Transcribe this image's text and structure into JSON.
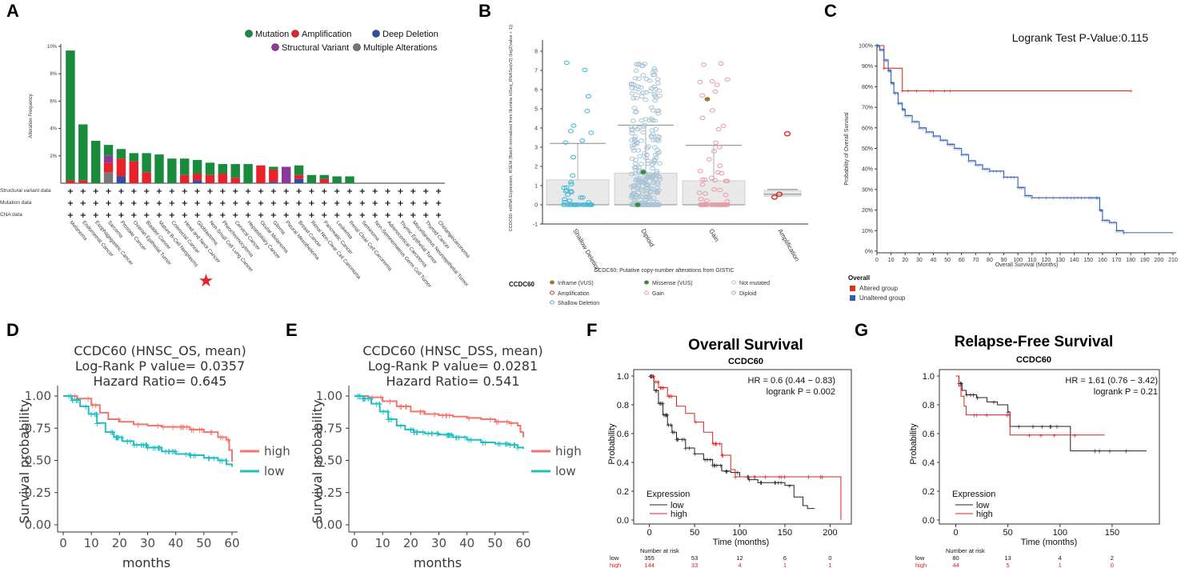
{
  "panel_labels": [
    "A",
    "B",
    "C",
    "D",
    "E",
    "F",
    "G"
  ],
  "chart_data": [
    {
      "id": "A",
      "type": "bar",
      "ylabel": "Alteration Frequency",
      "yticks": [
        "10%",
        "8%",
        "6%",
        "4%",
        "2%"
      ],
      "ylim": [
        0,
        10
      ],
      "legend": [
        {
          "name": "Mutation",
          "color": "#1a8a3c"
        },
        {
          "name": "Amplification",
          "color": "#e8222a"
        },
        {
          "name": "Deep Deletion",
          "color": "#2c4fa3"
        },
        {
          "name": "Structural Variant",
          "color": "#8b3a9b"
        },
        {
          "name": "Multiple Alterations",
          "color": "#777777"
        }
      ],
      "row_labels": [
        "Structural variant data",
        "Mutation data",
        "CNA data"
      ],
      "categories": [
        "Melanoma",
        "Endometrial Cancer",
        "Esophagogastric Cancer",
        "Sarcoma",
        "Prostate Cancer",
        "Ovarian Epithelial Tumor",
        "Bladder Cancer",
        "Mature B-Cell Neoplasms",
        "Colorectal Cancer",
        "Head and Neck Cancer",
        "Glioblastoma",
        "Non-Small Cell Lung Cancer",
        "Pheochromocytoma",
        "Cervical Cancer",
        "Hepatobiliary Cancer",
        "Ocular Melanoma",
        "Glioma",
        "Pleural Mesothelioma",
        "Breast Cancer",
        "Renal Non-Clear Cell Carcinoma",
        "Pancreatic Cancer",
        "Leukemia",
        "Renal Clear Cell Carcinoma",
        "Seminoma",
        "Non-Seminomatous Germ Cell Tumor",
        "Adrenocortical Carcinoma",
        "Thymic Epithelial Tumor",
        "Miscellaneous Neuroepithelial Tumor",
        "Thyroid Cancer",
        "Cholangiocarcinoma"
      ],
      "series": [
        {
          "name": "Multiple Alterations",
          "values": [
            0,
            0,
            0,
            0.8,
            0,
            0,
            0,
            0,
            0,
            0,
            0,
            0,
            0,
            0,
            0,
            0,
            0,
            0,
            0,
            0,
            0,
            0,
            0,
            0,
            0,
            0,
            0,
            0,
            0,
            0
          ]
        },
        {
          "name": "Deep Deletion",
          "values": [
            0,
            0,
            0,
            0,
            0.5,
            0,
            0,
            0,
            0,
            0,
            0.2,
            0,
            0,
            0,
            0,
            0,
            0.1,
            0,
            0.3,
            0,
            0,
            0,
            0,
            0,
            0,
            0,
            0,
            0,
            0,
            0
          ]
        },
        {
          "name": "Amplification",
          "values": [
            0.2,
            0.2,
            0,
            0.7,
            1.3,
            1.6,
            0.8,
            0,
            0,
            0.6,
            0.5,
            0.6,
            0.7,
            0.4,
            0,
            1.3,
            0.9,
            0,
            0.3,
            0,
            0.3,
            0,
            0,
            0,
            0,
            0,
            0,
            0,
            0,
            0
          ]
        },
        {
          "name": "Structural Variant",
          "values": [
            0,
            0,
            0,
            0.5,
            0,
            0,
            0,
            0,
            0,
            0,
            0,
            0,
            0,
            0,
            0,
            0,
            0,
            1.2,
            0,
            0,
            0,
            0,
            0,
            0,
            0,
            0,
            0,
            0,
            0,
            0
          ]
        },
        {
          "name": "Mutation",
          "values": [
            9.5,
            4.1,
            3.1,
            0.8,
            0.7,
            0.6,
            1.4,
            2.1,
            1.8,
            1.2,
            1.0,
            0.9,
            0.7,
            1.0,
            1.4,
            0,
            0.2,
            0,
            0.7,
            0.6,
            0.3,
            0.5,
            0.5,
            0,
            0,
            0,
            0,
            0,
            0,
            0
          ]
        }
      ],
      "highlight_marker": "★"
    },
    {
      "id": "B",
      "type": "scatter",
      "ylabel": "CCDC60: mRNA Expression, RSEM (Batch normalized from Illumina HiSeq_RNASeqV2) (log2(value + 1))",
      "xlabel": "CCDC60: Putative copy-number alterations from GISTIC",
      "categories": [
        "Shallow Deletion",
        "Diploid",
        "Gain",
        "Amplification"
      ],
      "ylim": [
        -1,
        8
      ],
      "yticks": [
        "8",
        "7",
        "6",
        "5",
        "4",
        "3",
        "2",
        "1",
        "0",
        "-1"
      ],
      "legend_title": "CCDC60",
      "legend": [
        {
          "name": "Inframe (VUS)",
          "color": "#9b7a2b"
        },
        {
          "name": "Missense (VUS)",
          "color": "#3f8a3f"
        },
        {
          "name": "Not mutated",
          "color": "#bbbbbb"
        },
        {
          "name": "Amplification",
          "color": "#d62a2a"
        },
        {
          "name": "Gain",
          "color": "#e89aa8"
        },
        {
          "name": "Diploid",
          "color": "#aaaaaa"
        },
        {
          "name": "Shallow Deletion",
          "color": "#3fb8d6"
        }
      ],
      "box_stats": [
        {
          "category": "Shallow Deletion",
          "q1": 0,
          "median": 0,
          "q3": 1.3,
          "whisker_hi": 3.2,
          "color": "#3fb8d6"
        },
        {
          "category": "Diploid",
          "q1": 0,
          "median": 0,
          "q3": 1.65,
          "whisker_hi": 4.15,
          "color": "#a9c4d6"
        },
        {
          "category": "Gain",
          "q1": 0,
          "median": 0,
          "q3": 1.25,
          "whisker_hi": 3.1,
          "color": "#e89aa8"
        },
        {
          "category": "Amplification",
          "q1": 0.45,
          "median": 0.55,
          "q3": 0.75,
          "whisker_hi": 0.8,
          "color": "#d62a2a"
        }
      ]
    },
    {
      "id": "C",
      "type": "line",
      "title": "Logrank Test P-Value:0.115",
      "ylabel": "Probability of Overall Survival",
      "xlabel": "Overall Survival (Months)",
      "xticks": [
        "0",
        "10",
        "20",
        "30",
        "40",
        "50",
        "60",
        "70",
        "80",
        "90",
        "100",
        "110",
        "120",
        "130",
        "140",
        "150",
        "160",
        "170",
        "180",
        "190",
        "200",
        "210"
      ],
      "yticks": [
        "100%",
        "90%",
        "80%",
        "70%",
        "60%",
        "50%",
        "40%",
        "30%",
        "20%",
        "10%",
        "0%"
      ],
      "xlim": [
        0,
        210
      ],
      "ylim": [
        0,
        100
      ],
      "legend_title": "Overall",
      "series": [
        {
          "name": "Altered group",
          "color": "#e3301e",
          "x": [
            0,
            5,
            5,
            18,
            18,
            180
          ],
          "y": [
            100,
            100,
            89,
            89,
            78,
            78
          ]
        },
        {
          "name": "Unaltered group",
          "color": "#2e5fb5",
          "x": [
            0,
            2,
            5,
            8,
            10,
            12,
            15,
            18,
            20,
            25,
            30,
            35,
            40,
            45,
            50,
            55,
            60,
            65,
            70,
            75,
            80,
            90,
            100,
            105,
            110,
            120,
            130,
            140,
            150,
            155,
            158,
            160,
            165,
            170,
            175,
            180,
            190,
            200,
            210
          ],
          "y": [
            100,
            98,
            93,
            88,
            82,
            77,
            72,
            69,
            66,
            63,
            60,
            58,
            56,
            54,
            52,
            50,
            47,
            44,
            42,
            40,
            39,
            36,
            31,
            27,
            26,
            26,
            26,
            26,
            26,
            26,
            20,
            15,
            14,
            10,
            9,
            9,
            9,
            9,
            9
          ]
        }
      ]
    },
    {
      "id": "D",
      "type": "line",
      "title_lines": [
        "CCDC60 (HNSC_OS, mean)",
        "Log-Rank P value= 0.0357",
        "Hazard Ratio= 0.645"
      ],
      "ylabel": "Survival probability",
      "xlabel": "months",
      "xticks": [
        "0",
        "10",
        "20",
        "30",
        "40",
        "50",
        "60"
      ],
      "yticks": [
        "1.00",
        "0.75",
        "0.50",
        "0.25",
        "0.00"
      ],
      "xlim": [
        -2,
        62
      ],
      "ylim": [
        0,
        1
      ],
      "series": [
        {
          "name": "high",
          "color": "#f0766e",
          "x": [
            0,
            5,
            10,
            13,
            16,
            20,
            25,
            30,
            35,
            40,
            45,
            50,
            55,
            58,
            59,
            60
          ],
          "y": [
            1,
            0.98,
            0.93,
            0.87,
            0.82,
            0.8,
            0.78,
            0.77,
            0.76,
            0.76,
            0.74,
            0.72,
            0.68,
            0.66,
            0.58,
            0.49
          ]
        },
        {
          "name": "low",
          "color": "#1fbfc3",
          "x": [
            0,
            3,
            6,
            9,
            12,
            15,
            18,
            21,
            25,
            30,
            35,
            40,
            45,
            50,
            55,
            58,
            60
          ],
          "y": [
            1,
            0.97,
            0.92,
            0.86,
            0.79,
            0.72,
            0.68,
            0.65,
            0.62,
            0.6,
            0.57,
            0.55,
            0.54,
            0.52,
            0.5,
            0.47,
            0.45
          ]
        }
      ]
    },
    {
      "id": "E",
      "type": "line",
      "title_lines": [
        "CCDC60 (HNSC_DSS, mean)",
        "Log-Rank P value= 0.0281",
        "Hazard Ratio= 0.541"
      ],
      "ylabel": "Survival probability",
      "xlabel": "months",
      "xticks": [
        "0",
        "10",
        "20",
        "30",
        "40",
        "50",
        "60"
      ],
      "yticks": [
        "1.00",
        "0.75",
        "0.50",
        "0.25",
        "0.00"
      ],
      "xlim": [
        -2,
        62
      ],
      "ylim": [
        0,
        1
      ],
      "series": [
        {
          "name": "high",
          "color": "#f0766e",
          "x": [
            0,
            5,
            10,
            15,
            20,
            25,
            30,
            35,
            40,
            45,
            50,
            55,
            58,
            59,
            60
          ],
          "y": [
            1,
            0.99,
            0.96,
            0.92,
            0.88,
            0.86,
            0.85,
            0.84,
            0.83,
            0.82,
            0.8,
            0.79,
            0.77,
            0.72,
            0.68
          ]
        },
        {
          "name": "low",
          "color": "#1fbfc3",
          "x": [
            0,
            3,
            6,
            9,
            12,
            15,
            18,
            21,
            25,
            30,
            35,
            40,
            45,
            50,
            55,
            58,
            60
          ],
          "y": [
            1,
            0.98,
            0.94,
            0.88,
            0.82,
            0.77,
            0.74,
            0.72,
            0.71,
            0.7,
            0.68,
            0.66,
            0.64,
            0.63,
            0.62,
            0.6,
            0.59
          ]
        }
      ]
    },
    {
      "id": "F",
      "type": "line",
      "title": "Overall Survival",
      "subtitle": "CCDC60",
      "stats": [
        "HR = 0.6 (0.44 − 0.83)",
        "logrank P = 0.002"
      ],
      "ylabel": "Probability",
      "xlabel": "Time (months)",
      "xticks": [
        "0",
        "50",
        "100",
        "150",
        "200"
      ],
      "yticks": [
        "1.0",
        "0.8",
        "0.6",
        "0.4",
        "0.2",
        "0.0"
      ],
      "xlim": [
        -5,
        220
      ],
      "ylim": [
        0,
        1
      ],
      "legend_title": "Expression",
      "series": [
        {
          "name": "low",
          "color": "#222222",
          "x": [
            0,
            5,
            10,
            15,
            20,
            25,
            30,
            40,
            50,
            60,
            70,
            80,
            90,
            100,
            110,
            120,
            130,
            140,
            150,
            160,
            170,
            175,
            183
          ],
          "y": [
            1,
            0.9,
            0.81,
            0.73,
            0.66,
            0.61,
            0.56,
            0.5,
            0.46,
            0.42,
            0.38,
            0.34,
            0.33,
            0.3,
            0.28,
            0.26,
            0.26,
            0.26,
            0.24,
            0.16,
            0.1,
            0.08,
            0.08
          ]
        },
        {
          "name": "high",
          "color": "#e0201e",
          "x": [
            0,
            5,
            10,
            20,
            30,
            40,
            50,
            60,
            70,
            80,
            90,
            95,
            100,
            120,
            150,
            200,
            212,
            212
          ],
          "y": [
            1,
            0.96,
            0.92,
            0.86,
            0.79,
            0.74,
            0.68,
            0.61,
            0.53,
            0.45,
            0.35,
            0.3,
            0.3,
            0.3,
            0.3,
            0.3,
            0.3,
            0
          ]
        }
      ],
      "risk_table": {
        "label": "Number at risk",
        "rows": [
          {
            "group": "low",
            "values": [
              "355",
              "53",
              "12",
              "6",
              "0"
            ]
          },
          {
            "group": "high",
            "values": [
              "144",
              "33",
              "4",
              "1",
              "1"
            ]
          }
        ]
      }
    },
    {
      "id": "G",
      "type": "line",
      "title": "Relapse-Free Survival",
      "subtitle": "CCDC60",
      "stats": [
        "HR = 1.61 (0.76 − 3.42)",
        "logrank P = 0.21"
      ],
      "ylabel": "Probability",
      "xlabel": "Time (months)",
      "xticks": [
        "0",
        "50",
        "100",
        "150"
      ],
      "yticks": [
        "1.0",
        "0.8",
        "0.6",
        "0.4",
        "0.2",
        "0.0"
      ],
      "xlim": [
        -5,
        190
      ],
      "ylim": [
        0,
        1
      ],
      "legend_title": "Expression",
      "series": [
        {
          "name": "low",
          "color": "#222222",
          "x": [
            0,
            3,
            6,
            10,
            20,
            30,
            40,
            50,
            52,
            60,
            80,
            100,
            108,
            110,
            150,
            183
          ],
          "y": [
            1,
            0.95,
            0.9,
            0.87,
            0.85,
            0.82,
            0.8,
            0.75,
            0.65,
            0.65,
            0.65,
            0.65,
            0.65,
            0.48,
            0.48,
            0.48
          ]
        },
        {
          "name": "high",
          "color": "#e0201e",
          "x": [
            0,
            3,
            5,
            8,
            10,
            20,
            30,
            40,
            50,
            52,
            100,
            143
          ],
          "y": [
            1,
            0.93,
            0.86,
            0.79,
            0.73,
            0.73,
            0.73,
            0.73,
            0.73,
            0.59,
            0.59,
            0.59
          ]
        }
      ],
      "risk_table": {
        "label": "Number at risk",
        "rows": [
          {
            "group": "low",
            "values": [
              "80",
              "13",
              "4",
              "2"
            ]
          },
          {
            "group": "high",
            "values": [
              "44",
              "5",
              "1",
              "0"
            ]
          }
        ]
      }
    }
  ]
}
